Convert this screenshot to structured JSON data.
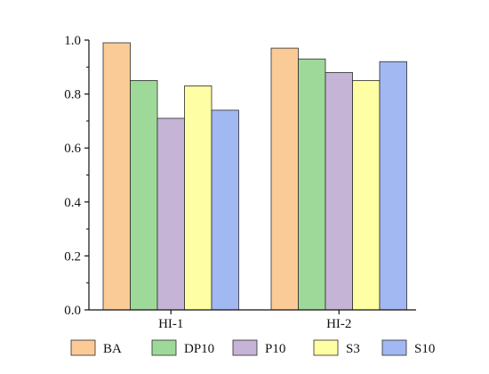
{
  "chart_data": {
    "type": "bar",
    "categories": [
      "HI-1",
      "HI-2"
    ],
    "series": [
      {
        "name": "BA",
        "color": "#FBCB97",
        "values": [
          0.99,
          0.97
        ]
      },
      {
        "name": "DP10",
        "color": "#9FD99A",
        "values": [
          0.85,
          0.93
        ]
      },
      {
        "name": "P10",
        "color": "#C6B4D6",
        "values": [
          0.71,
          0.88
        ]
      },
      {
        "name": "S3",
        "color": "#FEFEA4",
        "values": [
          0.83,
          0.85
        ]
      },
      {
        "name": "S10",
        "color": "#A2B8F2",
        "values": [
          0.74,
          0.92
        ]
      }
    ],
    "yticks": [
      "0.0",
      "0.2",
      "0.4",
      "0.6",
      "0.8",
      "1.0"
    ],
    "ylim": [
      0,
      1.0
    ],
    "grid": false,
    "legend_position": "bottom",
    "title": "",
    "xlabel": "",
    "ylabel": ""
  }
}
